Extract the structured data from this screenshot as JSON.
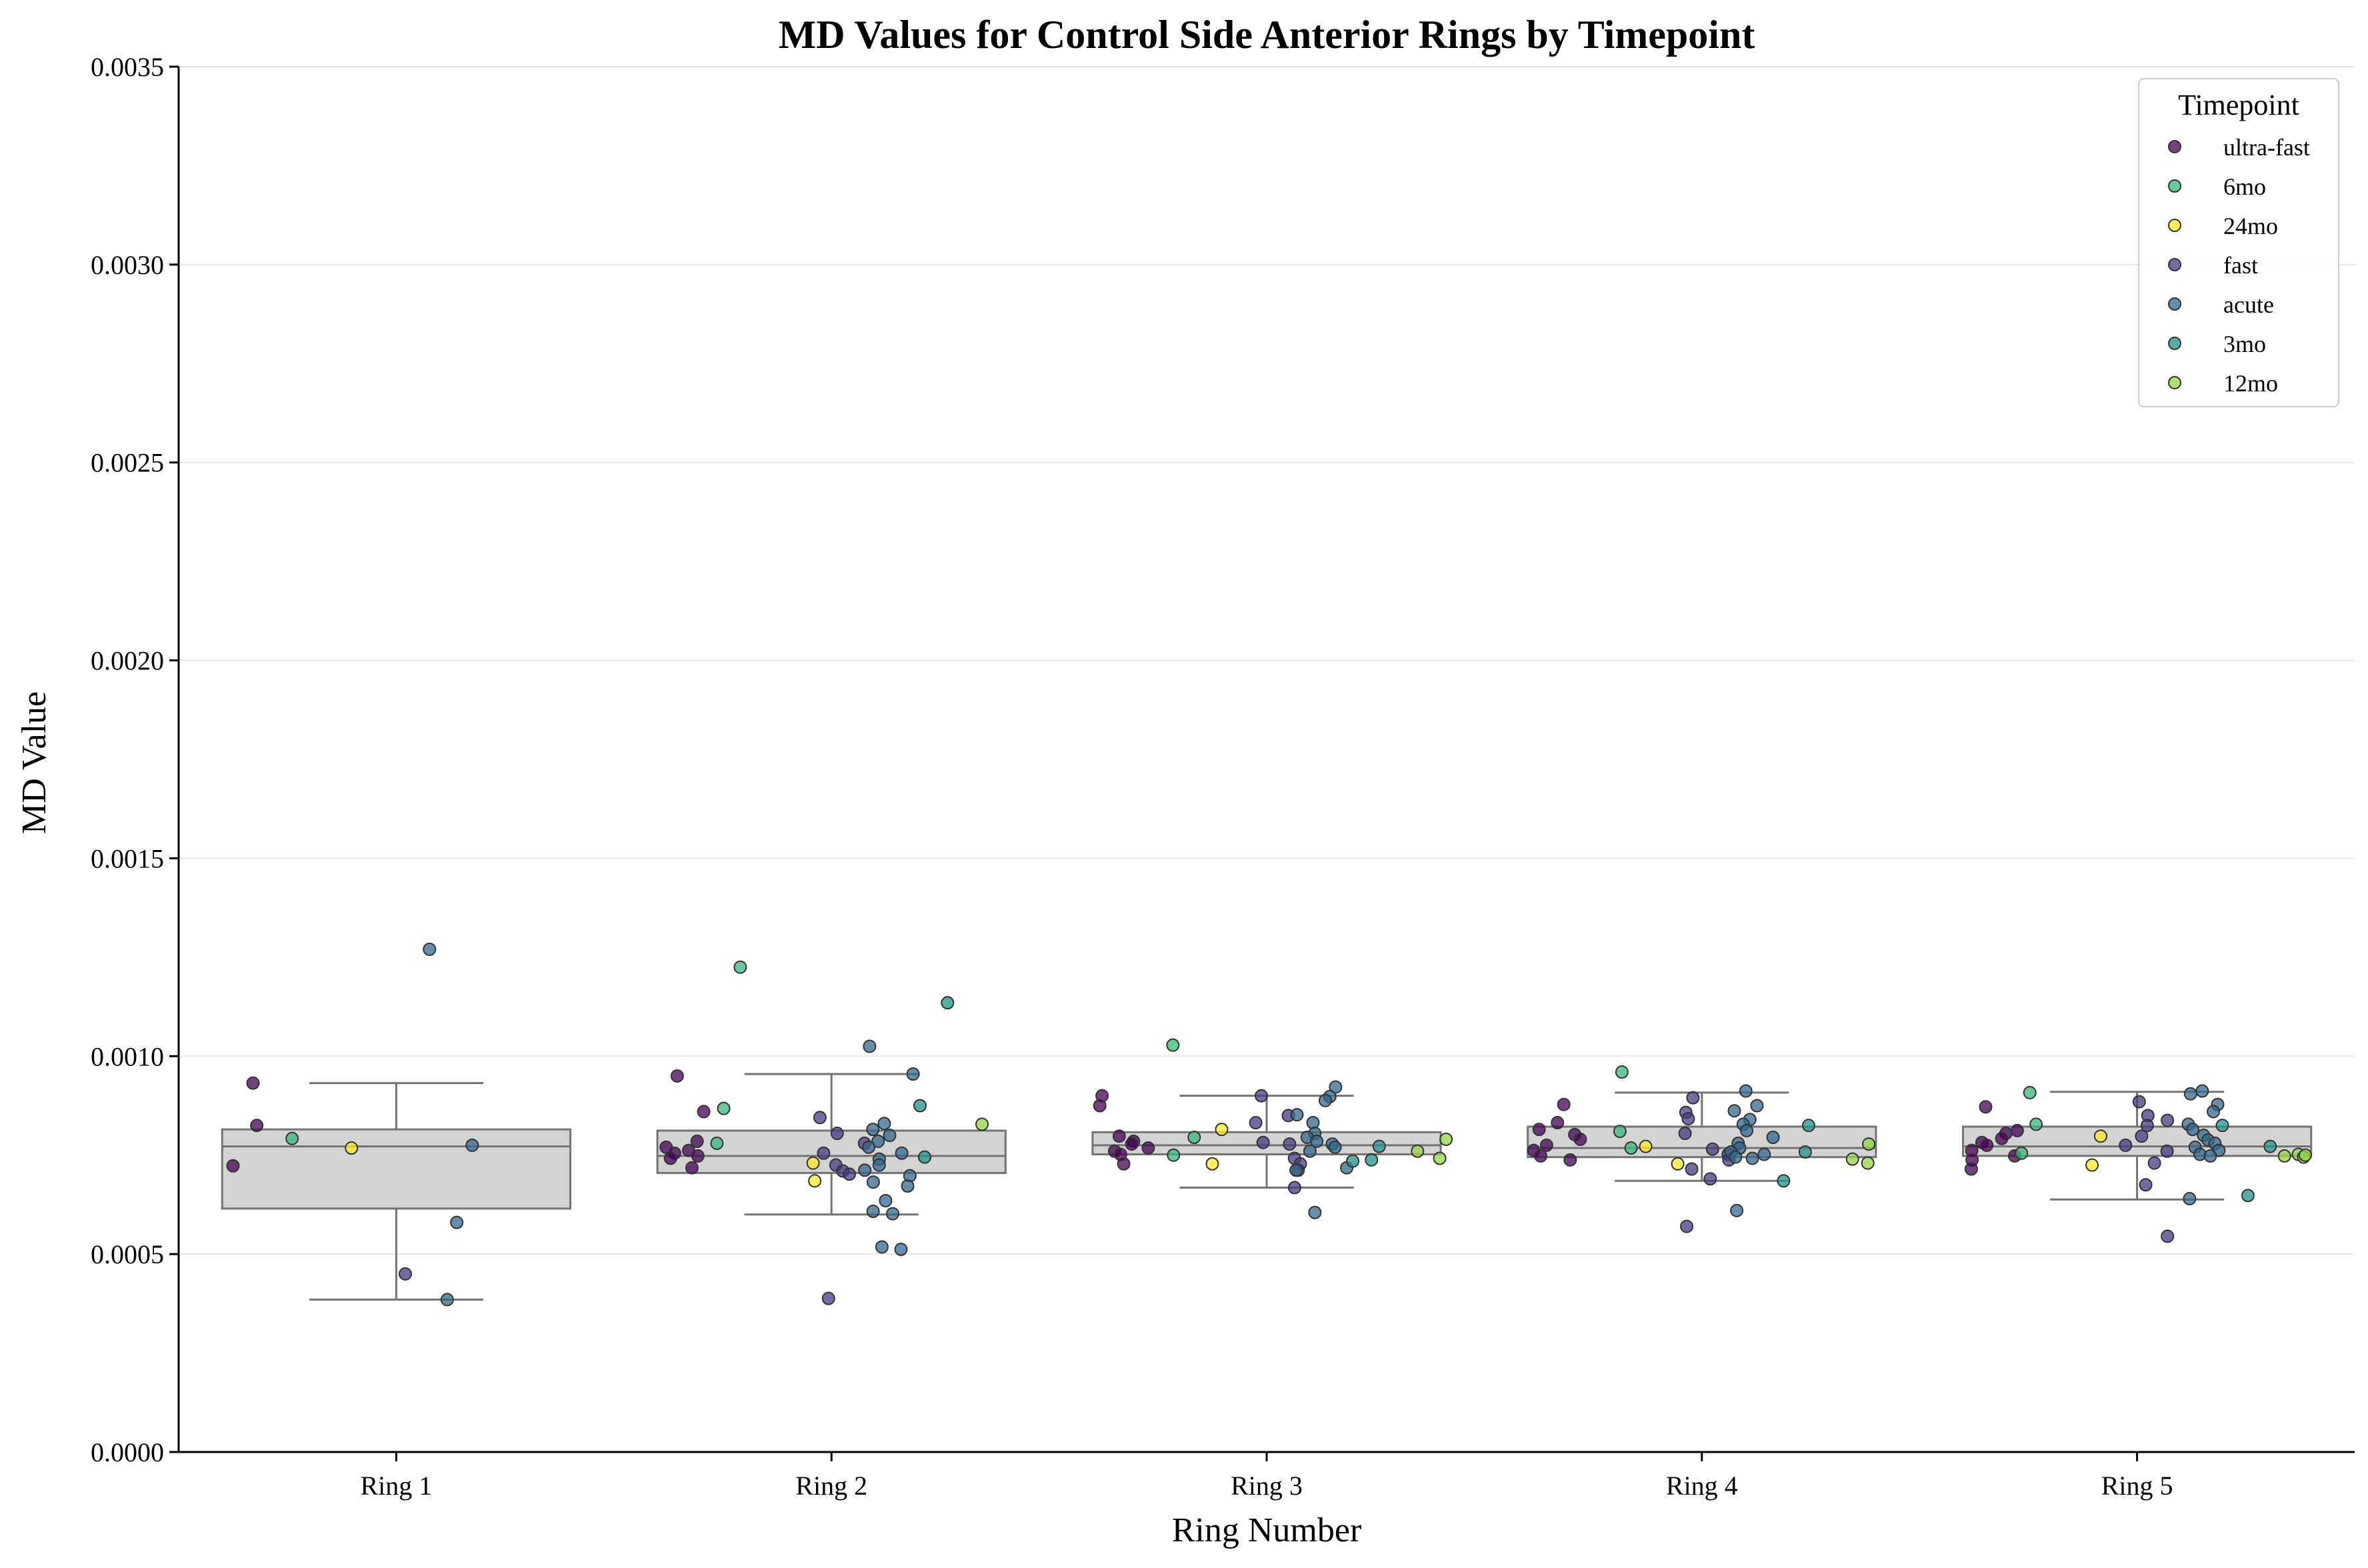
{
  "chart_data": {
    "type": "box+strip",
    "title": "MD Values for Control Side Anterior Rings by Timepoint",
    "xlabel": "Ring Number",
    "ylabel": "MD Value",
    "categories": [
      "Ring 1",
      "Ring 2",
      "Ring 3",
      "Ring 4",
      "Ring 5"
    ],
    "ylim": [
      0,
      0.0035
    ],
    "yticks": [
      0.0,
      0.0005,
      0.001,
      0.0015,
      0.002,
      0.0025,
      0.003,
      0.0035
    ],
    "ytick_labels": [
      "0.0000",
      "0.0005",
      "0.0010",
      "0.0015",
      "0.0020",
      "0.0025",
      "0.0030",
      "0.0035"
    ],
    "grid": "y",
    "legend": {
      "title": "Timepoint",
      "position": "top-right",
      "entries": [
        "ultra-fast",
        "6mo",
        "24mo",
        "fast",
        "acute",
        "3mo",
        "12mo"
      ]
    },
    "colors": {
      "ultra-fast": "#440154",
      "6mo": "#35b779",
      "24mo": "#fde725",
      "fast": "#443983",
      "acute": "#31688e",
      "3mo": "#21918c",
      "12mo": "#90d743",
      "box_fill": "#d3d3d3",
      "box_line": "#737373",
      "grid": "#e5e5e5"
    },
    "boxes": [
      {
        "category": "Ring 1",
        "whislo": 0.000385,
        "q1": 0.000615,
        "median": 0.000772,
        "q3": 0.000815,
        "whishi": 0.000932
      },
      {
        "category": "Ring 2",
        "whislo": 0.0006,
        "q1": 0.000705,
        "median": 0.000748,
        "q3": 0.000812,
        "whishi": 0.000955
      },
      {
        "category": "Ring 3",
        "whislo": 0.000668,
        "q1": 0.000752,
        "median": 0.000775,
        "q3": 0.000808,
        "whishi": 0.0009
      },
      {
        "category": "Ring 4",
        "whislo": 0.000685,
        "q1": 0.000745,
        "median": 0.000768,
        "q3": 0.000822,
        "whishi": 0.000908
      },
      {
        "category": "Ring 5",
        "whislo": 0.000638,
        "q1": 0.000748,
        "median": 0.000772,
        "q3": 0.000822,
        "whishi": 0.00091
      }
    ],
    "points": [
      {
        "category": "Ring 1",
        "timepoint": "ultra-fast",
        "values": [
          0.000932,
          0.000825,
          0.000723
        ]
      },
      {
        "category": "Ring 1",
        "timepoint": "6mo",
        "values": [
          0.000792
        ]
      },
      {
        "category": "Ring 1",
        "timepoint": "24mo",
        "values": [
          0.000768
        ]
      },
      {
        "category": "Ring 1",
        "timepoint": "fast",
        "values": [
          0.00045
        ]
      },
      {
        "category": "Ring 1",
        "timepoint": "acute",
        "values": [
          0.00127,
          0.000775,
          0.00058,
          0.000385
        ]
      },
      {
        "category": "Ring 2",
        "timepoint": "ultra-fast",
        "values": [
          0.00095,
          0.00086,
          0.000785,
          0.00077,
          0.000762,
          0.000755,
          0.000748,
          0.000742,
          0.000718
        ]
      },
      {
        "category": "Ring 2",
        "timepoint": "6mo",
        "values": [
          0.001225,
          0.000868,
          0.00078
        ]
      },
      {
        "category": "Ring 2",
        "timepoint": "24mo",
        "values": [
          0.00073,
          0.000685
        ]
      },
      {
        "category": "Ring 2",
        "timepoint": "fast",
        "values": [
          0.000845,
          0.000805,
          0.00078,
          0.000755,
          0.000725,
          0.00071,
          0.000702,
          0.000388
        ]
      },
      {
        "category": "Ring 2",
        "timepoint": "acute",
        "values": [
          0.001025,
          0.000955,
          0.00083,
          0.000815,
          0.0008,
          0.000785,
          0.00077,
          0.000755,
          0.00074,
          0.000725,
          0.000712,
          0.000698,
          0.000682,
          0.000672,
          0.000635,
          0.000608,
          0.000602,
          0.000518,
          0.000512
        ]
      },
      {
        "category": "Ring 2",
        "timepoint": "3mo",
        "values": [
          0.001135,
          0.000875,
          0.000745
        ]
      },
      {
        "category": "Ring 2",
        "timepoint": "12mo",
        "values": [
          0.000828
        ]
      },
      {
        "category": "Ring 3",
        "timepoint": "ultra-fast",
        "values": [
          0.0009,
          0.000875,
          0.000798,
          0.000785,
          0.000778,
          0.000768,
          0.00076,
          0.000752,
          0.000728
        ]
      },
      {
        "category": "Ring 3",
        "timepoint": "6mo",
        "values": [
          0.001028,
          0.000795,
          0.00075
        ]
      },
      {
        "category": "Ring 3",
        "timepoint": "24mo",
        "values": [
          0.000815,
          0.000728
        ]
      },
      {
        "category": "Ring 3",
        "timepoint": "fast",
        "values": [
          0.0009,
          0.00085,
          0.000832,
          0.000782,
          0.000778,
          0.000742,
          0.000728,
          0.000712,
          0.000668
        ]
      },
      {
        "category": "Ring 3",
        "timepoint": "acute",
        "values": [
          0.000922,
          0.000898,
          0.000888,
          0.000852,
          0.000832,
          0.000805,
          0.000795,
          0.000785,
          0.000778,
          0.00077,
          0.00076,
          0.000718,
          0.000712,
          0.000605
        ]
      },
      {
        "category": "Ring 3",
        "timepoint": "3mo",
        "values": [
          0.000772,
          0.000738,
          0.000735
        ]
      },
      {
        "category": "Ring 3",
        "timepoint": "12mo",
        "values": [
          0.00079,
          0.00076,
          0.000742
        ]
      },
      {
        "category": "Ring 4",
        "timepoint": "ultra-fast",
        "values": [
          0.000878,
          0.000832,
          0.000815,
          0.000802,
          0.00079,
          0.000775,
          0.000762,
          0.000748,
          0.000738
        ]
      },
      {
        "category": "Ring 4",
        "timepoint": "6mo",
        "values": [
          0.00096,
          0.00081,
          0.000768
        ]
      },
      {
        "category": "Ring 4",
        "timepoint": "24mo",
        "values": [
          0.000772,
          0.000728
        ]
      },
      {
        "category": "Ring 4",
        "timepoint": "fast",
        "values": [
          0.000895,
          0.000858,
          0.000842,
          0.000805,
          0.000765,
          0.000752,
          0.000738,
          0.000715,
          0.00069,
          0.00057
        ]
      },
      {
        "category": "Ring 4",
        "timepoint": "acute",
        "values": [
          0.000912,
          0.000875,
          0.000862,
          0.00084,
          0.000828,
          0.000812,
          0.000795,
          0.00078,
          0.000768,
          0.000758,
          0.000752,
          0.000745,
          0.000742,
          0.00061
        ]
      },
      {
        "category": "Ring 4",
        "timepoint": "3mo",
        "values": [
          0.000825,
          0.000758,
          0.000685
        ]
      },
      {
        "category": "Ring 4",
        "timepoint": "12mo",
        "values": [
          0.000778,
          0.00074,
          0.00073
        ]
      },
      {
        "category": "Ring 5",
        "timepoint": "ultra-fast",
        "values": [
          0.000872,
          0.000812,
          0.000805,
          0.000792,
          0.000782,
          0.000775,
          0.000762,
          0.000748,
          0.000738,
          0.000715
        ]
      },
      {
        "category": "Ring 5",
        "timepoint": "6mo",
        "values": [
          0.000908,
          0.000828,
          0.000755
        ]
      },
      {
        "category": "Ring 5",
        "timepoint": "24mo",
        "values": [
          0.000798,
          0.000725
        ]
      },
      {
        "category": "Ring 5",
        "timepoint": "fast",
        "values": [
          0.000885,
          0.00085,
          0.000838,
          0.000825,
          0.000798,
          0.000775,
          0.00076,
          0.00073,
          0.000675,
          0.000545
        ]
      },
      {
        "category": "Ring 5",
        "timepoint": "acute",
        "values": [
          0.000912,
          0.000905,
          0.000878,
          0.00086,
          0.000828,
          0.000815,
          0.0008,
          0.000788,
          0.00078,
          0.00077,
          0.000762,
          0.000752,
          0.000748,
          0.00064
        ]
      },
      {
        "category": "Ring 5",
        "timepoint": "3mo",
        "values": [
          0.000825,
          0.000772,
          0.000648
        ]
      },
      {
        "category": "Ring 5",
        "timepoint": "12mo",
        "values": [
          0.000752,
          0.000748,
          0.000745,
          0.00075
        ]
      }
    ]
  }
}
